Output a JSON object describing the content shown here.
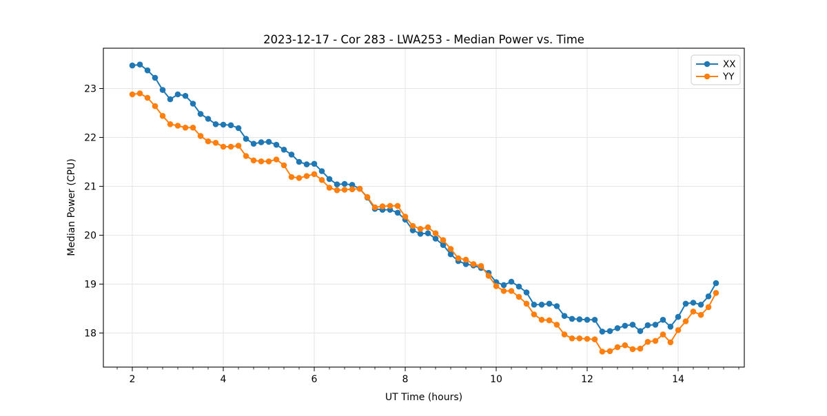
{
  "figure": {
    "title": "2023-12-17 - Cor 283 - LWA253 - Median Power vs. Time",
    "xlabel": "UT Time (hours)",
    "ylabel": "Median Power (CPU)"
  },
  "colors": {
    "xx_series": "#1f77b4",
    "yy_series": "#ff7f0e",
    "grid": "#e5e5e5",
    "spine": "#000000",
    "legend_border": "#cccccc",
    "background": "#ffffff"
  },
  "legend": {
    "position": "upper right",
    "items": [
      {
        "label": "XX",
        "color": "#1f77b4"
      },
      {
        "label": "YY",
        "color": "#ff7f0e"
      }
    ]
  },
  "axes": {
    "xlim": [
      1.364,
      15.455
    ],
    "ylim": [
      17.303,
      23.824
    ],
    "x_ticks": [
      2,
      4,
      6,
      8,
      10,
      12,
      14
    ],
    "x_minor_step": 0.33333,
    "y_ticks": [
      18,
      19,
      20,
      21,
      22,
      23
    ],
    "grid": true
  },
  "chart_data": {
    "type": "line",
    "title": "2023-12-17 - Cor 283 - LWA253 - Median Power vs. Time",
    "xlabel": "UT Time (hours)",
    "ylabel": "Median Power (CPU)",
    "xlim": [
      1.364,
      15.455
    ],
    "ylim": [
      17.303,
      23.824
    ],
    "grid": true,
    "legend_position": "upper right",
    "marker": "circle",
    "x": [
      2.0,
      2.167,
      2.333,
      2.5,
      2.667,
      2.833,
      3.0,
      3.167,
      3.333,
      3.5,
      3.667,
      3.833,
      4.0,
      4.167,
      4.333,
      4.5,
      4.667,
      4.833,
      5.0,
      5.167,
      5.333,
      5.5,
      5.667,
      5.833,
      6.0,
      6.167,
      6.333,
      6.5,
      6.667,
      6.833,
      7.0,
      7.167,
      7.333,
      7.5,
      7.667,
      7.833,
      8.0,
      8.167,
      8.333,
      8.5,
      8.667,
      8.833,
      9.0,
      9.167,
      9.333,
      9.5,
      9.667,
      9.833,
      10.0,
      10.167,
      10.333,
      10.5,
      10.667,
      10.833,
      11.0,
      11.167,
      11.333,
      11.5,
      11.667,
      11.833,
      12.0,
      12.167,
      12.333,
      12.5,
      12.667,
      12.833,
      13.0,
      13.167,
      13.333,
      13.5,
      13.667,
      13.833,
      14.0,
      14.167,
      14.333,
      14.5,
      14.667,
      14.833
    ],
    "series": [
      {
        "name": "XX",
        "color": "#1f77b4",
        "values": [
          23.47,
          23.49,
          23.37,
          23.22,
          22.97,
          22.78,
          22.88,
          22.85,
          22.69,
          22.48,
          22.38,
          22.27,
          22.26,
          22.25,
          22.19,
          21.97,
          21.87,
          21.9,
          21.91,
          21.85,
          21.75,
          21.65,
          21.5,
          21.45,
          21.46,
          21.31,
          21.15,
          21.04,
          21.05,
          21.03,
          20.95,
          20.77,
          20.54,
          20.52,
          20.52,
          20.46,
          20.32,
          20.1,
          20.03,
          20.04,
          19.93,
          19.8,
          19.61,
          19.47,
          19.41,
          19.38,
          19.33,
          19.23,
          19.04,
          18.98,
          19.05,
          18.95,
          18.83,
          18.58,
          18.58,
          18.6,
          18.55,
          18.35,
          18.29,
          18.28,
          18.27,
          18.27,
          18.03,
          18.04,
          18.1,
          18.15,
          18.17,
          18.04,
          18.16,
          18.17,
          18.27,
          18.13,
          18.33,
          18.6,
          18.62,
          18.58,
          18.75,
          19.02
        ]
      },
      {
        "name": "YY",
        "color": "#ff7f0e",
        "values": [
          22.88,
          22.9,
          22.81,
          22.64,
          22.44,
          22.27,
          22.24,
          22.2,
          22.2,
          22.03,
          21.92,
          21.89,
          21.81,
          21.81,
          21.83,
          21.62,
          21.53,
          21.51,
          21.51,
          21.55,
          21.43,
          21.19,
          21.17,
          21.21,
          21.25,
          21.13,
          20.97,
          20.92,
          20.93,
          20.94,
          20.95,
          20.78,
          20.57,
          20.59,
          20.6,
          20.6,
          20.38,
          20.19,
          20.13,
          20.16,
          20.04,
          19.9,
          19.72,
          19.53,
          19.5,
          19.41,
          19.37,
          19.17,
          18.96,
          18.86,
          18.86,
          18.74,
          18.6,
          18.38,
          18.27,
          18.26,
          18.17,
          17.97,
          17.89,
          17.89,
          17.88,
          17.87,
          17.62,
          17.63,
          17.71,
          17.75,
          17.67,
          17.68,
          17.82,
          17.84,
          17.97,
          17.81,
          18.06,
          18.24,
          18.44,
          18.37,
          18.53,
          18.82
        ]
      }
    ]
  }
}
